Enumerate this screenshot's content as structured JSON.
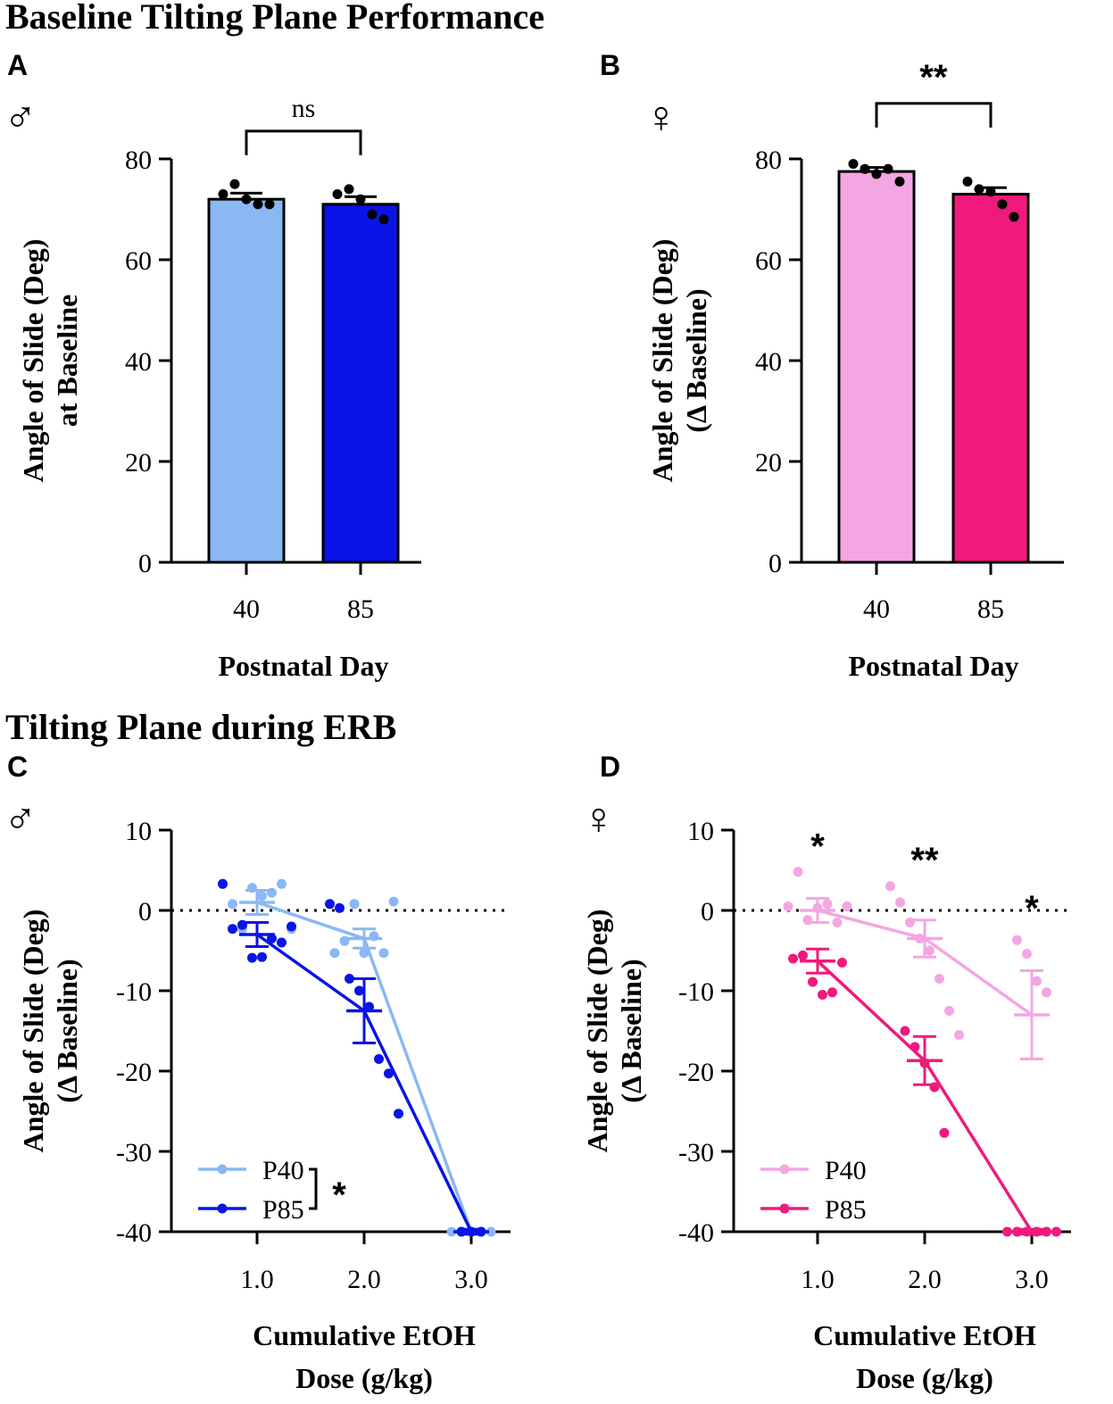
{
  "sections": {
    "top_title": "Baseline Tilting Plane Performance",
    "bottom_title": "Tilting Plane during ERB"
  },
  "colors": {
    "male_p40": "#8ab8f4",
    "male_p85": "#0a14e6",
    "female_p40": "#f4a6e2",
    "female_p85": "#ef1a7c"
  },
  "chart_data": [
    {
      "panel": "A",
      "symbol": "♂",
      "type": "bar",
      "categories": [
        "40",
        "85"
      ],
      "values": [
        72,
        71
      ],
      "errors": [
        1.2,
        1.5
      ],
      "points": [
        [
          73,
          75,
          72,
          71,
          71
        ],
        [
          73,
          74,
          72,
          69,
          68
        ]
      ],
      "colors": [
        "#8ab8f4",
        "#0a14e6"
      ],
      "yticks": [
        0,
        20,
        40,
        60,
        80
      ],
      "ylim": [
        0,
        80
      ],
      "xlabel": "Postnatal Day",
      "ylabel_lines": [
        "Angle of Slide (Deg)",
        "at Baseline"
      ],
      "significance": "ns"
    },
    {
      "panel": "B",
      "symbol": "♀",
      "type": "bar",
      "categories": [
        "40",
        "85"
      ],
      "values": [
        77.5,
        73
      ],
      "errors": [
        0.8,
        1.3
      ],
      "points": [
        [
          79,
          78,
          77,
          78,
          75.5
        ],
        [
          75.5,
          74,
          73.5,
          71,
          68.5
        ]
      ],
      "colors": [
        "#f4a6e2",
        "#ef1a7c"
      ],
      "yticks": [
        0,
        20,
        40,
        60,
        80
      ],
      "ylim": [
        0,
        80
      ],
      "xlabel": "Postnatal Day",
      "ylabel_lines": [
        "Angle of Slide (Deg)",
        "(Δ Baseline)"
      ],
      "significance": "**"
    },
    {
      "panel": "C",
      "symbol": "♂",
      "type": "line",
      "x": [
        "1.0",
        "2.0",
        "3.0"
      ],
      "series": [
        {
          "name": "P40",
          "values": [
            1,
            -3.5,
            -40
          ],
          "errors": [
            1.5,
            1.2,
            0.3
          ],
          "points": [
            [
              3.3,
              0.8,
              -2.3,
              2.8,
              1.8,
              2.2,
              3.3,
              -2.3
            ],
            [
              -5.3,
              -3.8,
              0.8,
              -5.3,
              -3.2,
              -5.3,
              1.1
            ],
            [
              -40,
              -40,
              -40,
              -40,
              -40
            ]
          ]
        },
        {
          "name": "P85",
          "values": [
            -3,
            -12.5,
            -40
          ],
          "errors": [
            1.5,
            4,
            0.3
          ],
          "points": [
            [
              3.3,
              -2.3,
              -1.8,
              -5.9,
              -5.8,
              -3.5,
              -4,
              -2
            ],
            [
              0.8,
              0.3,
              -8.5,
              -10,
              -12,
              -18.5,
              -20.3,
              -25.3
            ],
            [
              -40,
              -40,
              -40
            ]
          ]
        }
      ],
      "yticks": [
        10,
        0,
        -10,
        -20,
        -30,
        -40
      ],
      "ylim": [
        -40,
        10
      ],
      "xlabel_lines": [
        "Cumulative EtOH",
        "Dose (g/kg)"
      ],
      "ylabel_lines": [
        "Angle of Slide (Deg)",
        "(Δ Baseline)"
      ],
      "legend_sig": "*",
      "point_sig": [
        "",
        "",
        ""
      ]
    },
    {
      "panel": "D",
      "symbol": "♀",
      "type": "line",
      "x": [
        "1.0",
        "2.0",
        "3.0"
      ],
      "series": [
        {
          "name": "P40",
          "values": [
            0,
            -3.5,
            -13
          ],
          "errors": [
            1.5,
            2.3,
            5.5
          ],
          "points": [
            [
              0.5,
              4.8,
              -1.2,
              0.3,
              0.8,
              -1.5,
              0.5
            ],
            [
              3,
              1,
              -1.5,
              -3.5,
              -5,
              -8.5,
              -12.5,
              -15.5
            ],
            [
              -3.7,
              -5.4,
              -8.8,
              -10.2
            ]
          ]
        },
        {
          "name": "P85",
          "values": [
            -6.3,
            -18.7,
            -40
          ],
          "errors": [
            1.5,
            3,
            0.3
          ],
          "points": [
            [
              -6,
              -5.6,
              -8.9,
              -10.5,
              -10.2,
              -6.5
            ],
            [
              -15,
              -17,
              -19,
              -22,
              -27.7
            ],
            [
              -40,
              -40,
              -40,
              -40,
              -40,
              -40
            ]
          ]
        }
      ],
      "yticks": [
        10,
        0,
        -10,
        -20,
        -30,
        -40
      ],
      "ylim": [
        -40,
        10
      ],
      "xlabel_lines": [
        "Cumulative EtOH",
        "Dose (g/kg)"
      ],
      "ylabel_lines": [
        "Angle of Slide (Deg)",
        "(Δ Baseline)"
      ],
      "legend_sig": "",
      "point_sig": [
        "*",
        "**",
        "*"
      ]
    }
  ]
}
